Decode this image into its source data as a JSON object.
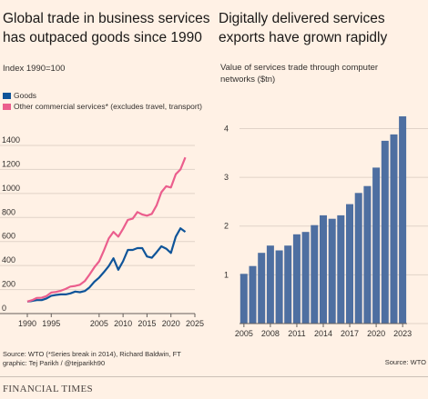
{
  "left": {
    "title": "Global trade in business services has outpaced goods since 1990",
    "subtitle": "Index 1990=100",
    "legend": [
      {
        "label": "Goods",
        "color": "#0f5499"
      },
      {
        "label": "Other commercial services* (excludes travel, transport)",
        "color": "#eb5e8d"
      }
    ],
    "source": "Source: WTO (*Series break in 2014), Richard Baldwin, FT graphic: Tej Parikh / @tejparikh90"
  },
  "right": {
    "title": "Digitally delivered services exports have grown rapidly",
    "subtitle": "Value of services trade through computer networks ($tn)",
    "source": "Source: WTO"
  },
  "footer": {
    "logo": "FINANCIAL TIMES"
  },
  "chart_data": [
    {
      "type": "line",
      "title": "Global trade in business services has outpaced goods since 1990",
      "ylabel": "Index 1990=100",
      "xlim": [
        1990,
        2025
      ],
      "ylim": [
        0,
        1400
      ],
      "yticks": [
        0,
        200,
        400,
        600,
        800,
        1000,
        1200,
        1400
      ],
      "xticks": [
        1990,
        1995,
        2005,
        2010,
        2015,
        2020,
        2025
      ],
      "grid": true,
      "legend": "top-left",
      "series": [
        {
          "name": "Goods",
          "color": "#0f5499",
          "x": [
            1990,
            1991,
            1992,
            1993,
            1994,
            1995,
            1996,
            1997,
            1998,
            1999,
            2000,
            2001,
            2002,
            2003,
            2004,
            2005,
            2006,
            2007,
            2008,
            2009,
            2010,
            2011,
            2012,
            2013,
            2014,
            2015,
            2016,
            2017,
            2018,
            2019,
            2020,
            2021,
            2022,
            2023
          ],
          "y": [
            100,
            105,
            112,
            112,
            126,
            148,
            155,
            160,
            160,
            168,
            183,
            178,
            188,
            218,
            265,
            300,
            345,
            395,
            460,
            365,
            435,
            530,
            530,
            545,
            545,
            475,
            465,
            510,
            560,
            540,
            505,
            640,
            710,
            680
          ]
        },
        {
          "name": "Other commercial services* (excludes travel, transport)",
          "color": "#eb5e8d",
          "x": [
            1990,
            1991,
            1992,
            1993,
            1994,
            1995,
            1996,
            1997,
            1998,
            1999,
            2000,
            2001,
            2002,
            2003,
            2004,
            2005,
            2006,
            2007,
            2008,
            2009,
            2010,
            2011,
            2012,
            2013,
            2014,
            2015,
            2016,
            2017,
            2018,
            2019,
            2020,
            2021,
            2022,
            2023
          ],
          "y": [
            100,
            112,
            130,
            132,
            145,
            175,
            180,
            190,
            205,
            225,
            230,
            240,
            270,
            325,
            385,
            435,
            525,
            625,
            680,
            640,
            705,
            780,
            790,
            845,
            825,
            815,
            830,
            900,
            1010,
            1060,
            1050,
            1160,
            1200,
            1300
          ]
        }
      ]
    },
    {
      "type": "bar",
      "title": "Digitally delivered services exports have grown rapidly",
      "ylabel": "Value of services trade through computer networks ($tn)",
      "categories": [
        "2005",
        "2006",
        "2007",
        "2008",
        "2009",
        "2010",
        "2011",
        "2012",
        "2013",
        "2014",
        "2015",
        "2016",
        "2017",
        "2018",
        "2019",
        "2020",
        "2021",
        "2022",
        "2023"
      ],
      "xtick_labels": [
        "2005",
        "2008",
        "2011",
        "2014",
        "2017",
        "2020",
        "2023"
      ],
      "values": [
        1.02,
        1.18,
        1.45,
        1.6,
        1.5,
        1.6,
        1.83,
        1.88,
        2.02,
        2.22,
        2.15,
        2.22,
        2.45,
        2.68,
        2.82,
        3.2,
        3.75,
        3.88,
        4.25
      ],
      "ylim": [
        0,
        4.4
      ],
      "yticks": [
        0,
        1,
        2,
        3,
        4
      ],
      "grid": true,
      "color": "#4e6fa1"
    }
  ]
}
